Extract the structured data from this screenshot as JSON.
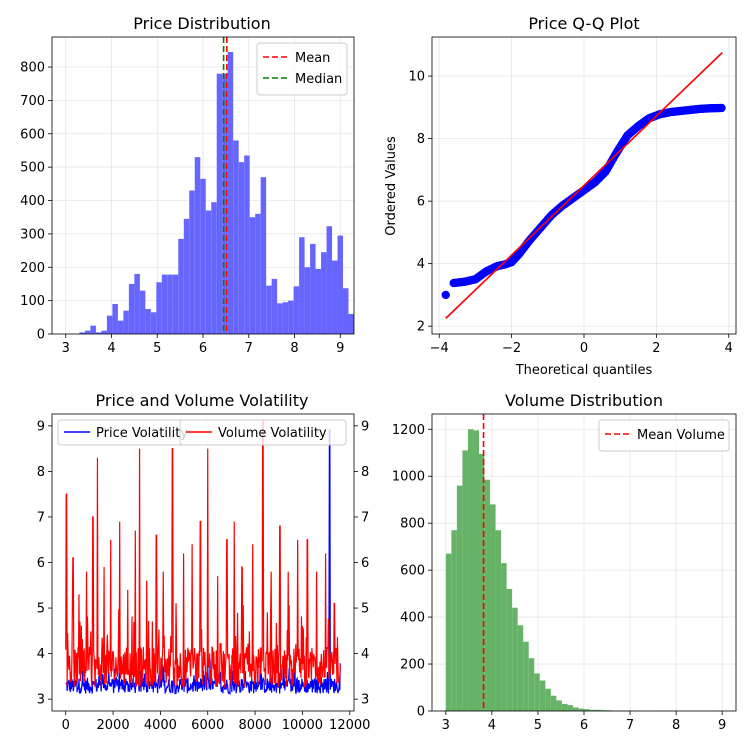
{
  "chart_data": [
    {
      "type": "bar",
      "title": "Price Distribution",
      "xlabel": "",
      "ylabel": "",
      "xlim": [
        2.7,
        9.3
      ],
      "ylim": [
        0,
        890
      ],
      "xticks": [
        "3",
        "4",
        "5",
        "6",
        "7",
        "8",
        "9"
      ],
      "yticks": [
        "0",
        "100",
        "200",
        "300",
        "400",
        "500",
        "600",
        "700",
        "800"
      ],
      "bin_start": 3.3,
      "bin_width": 0.12,
      "values": [
        5,
        10,
        25,
        5,
        10,
        55,
        90,
        40,
        70,
        150,
        180,
        130,
        75,
        65,
        155,
        178,
        178,
        178,
        285,
        345,
        430,
        530,
        465,
        370,
        395,
        780,
        780,
        845,
        580,
        515,
        535,
        350,
        360,
        470,
        145,
        165,
        92,
        95,
        100,
        143,
        290,
        200,
        270,
        195,
        245,
        323,
        220,
        295,
        137,
        60
      ],
      "bar_color": "#6666ff",
      "lines": [
        {
          "label": "Mean",
          "x": 6.52,
          "color": "#ff0000"
        },
        {
          "label": "Median",
          "x": 6.45,
          "color": "#008000"
        }
      ],
      "legend": "top-right",
      "grid": true
    },
    {
      "type": "scatter",
      "title": "Price Q-Q Plot",
      "xlabel": "Theoretical quantiles",
      "ylabel": "Ordered Values",
      "xlim": [
        -4.2,
        4.2
      ],
      "ylim": [
        1.75,
        11.25
      ],
      "xticks": [
        "−4",
        "−2",
        "0",
        "2",
        "4"
      ],
      "yticks": [
        "2",
        "4",
        "6",
        "8",
        "10"
      ],
      "curve": [
        [
          -3.82,
          3.0
        ],
        [
          -3.6,
          3.38
        ],
        [
          -3.3,
          3.42
        ],
        [
          -3.0,
          3.5
        ],
        [
          -2.7,
          3.75
        ],
        [
          -2.4,
          3.92
        ],
        [
          -2.2,
          3.97
        ],
        [
          -2.0,
          4.05
        ],
        [
          -1.8,
          4.3
        ],
        [
          -1.5,
          4.75
        ],
        [
          -1.2,
          5.15
        ],
        [
          -0.9,
          5.55
        ],
        [
          -0.6,
          5.85
        ],
        [
          -0.3,
          6.1
        ],
        [
          0.0,
          6.35
        ],
        [
          0.3,
          6.6
        ],
        [
          0.6,
          6.95
        ],
        [
          0.9,
          7.55
        ],
        [
          1.2,
          8.1
        ],
        [
          1.5,
          8.4
        ],
        [
          1.8,
          8.65
        ],
        [
          2.1,
          8.78
        ],
        [
          2.4,
          8.85
        ],
        [
          2.8,
          8.9
        ],
        [
          3.2,
          8.95
        ],
        [
          3.5,
          8.97
        ],
        [
          3.82,
          8.98
        ]
      ],
      "fit_line": [
        [
          -3.82,
          2.25
        ],
        [
          3.82,
          10.75
        ]
      ],
      "point_color": "#0000ff",
      "line_color": "#ff0000",
      "grid": true
    },
    {
      "type": "line",
      "title": "Price and Volume Volatility",
      "xlabel": "",
      "ylabel": "",
      "xlim": [
        -580,
        12180
      ],
      "ylim": [
        2.74,
        9.26
      ],
      "xticks": [
        "0",
        "2000",
        "4000",
        "6000",
        "8000",
        "10000",
        "12000"
      ],
      "yticks": [
        "3",
        "4",
        "5",
        "6",
        "7",
        "8",
        "9"
      ],
      "y2ticks": [
        "3",
        "4",
        "5",
        "6",
        "7",
        "8",
        "9"
      ],
      "n_points": 11600,
      "series": [
        {
          "name": "Price Volatility",
          "color": "#0000ff"
        },
        {
          "name": "Volume Volatility",
          "color": "#ff0000"
        }
      ],
      "price_spike": {
        "x": 11150,
        "y": 8.9
      },
      "volume_spikes": [
        [
          30,
          7.5
        ],
        [
          310,
          6.1
        ],
        [
          560,
          5.3
        ],
        [
          880,
          5.8
        ],
        [
          1150,
          7.0
        ],
        [
          1340,
          8.3
        ],
        [
          1620,
          5.9
        ],
        [
          1900,
          6.5
        ],
        [
          2280,
          6.9
        ],
        [
          2620,
          5.4
        ],
        [
          2940,
          6.7
        ],
        [
          3120,
          8.5
        ],
        [
          3420,
          5.6
        ],
        [
          3830,
          6.6
        ],
        [
          4120,
          5.8
        ],
        [
          4510,
          8.5
        ],
        [
          4980,
          6.2
        ],
        [
          5340,
          6.4
        ],
        [
          5690,
          6.9
        ],
        [
          6000,
          8.5
        ],
        [
          6420,
          5.7
        ],
        [
          6810,
          6.5
        ],
        [
          7120,
          6.9
        ],
        [
          7450,
          5.9
        ],
        [
          7900,
          6.4
        ],
        [
          8330,
          9.1
        ],
        [
          8680,
          5.8
        ],
        [
          9050,
          6.8
        ],
        [
          9400,
          5.8
        ],
        [
          9800,
          6.5
        ],
        [
          10210,
          6.5
        ],
        [
          10600,
          5.8
        ],
        [
          10980,
          6.2
        ],
        [
          11350,
          5.1
        ]
      ],
      "legend": "top",
      "grid": false
    },
    {
      "type": "bar",
      "title": "Volume Distribution",
      "xlabel": "",
      "ylabel": "",
      "xlim": [
        2.7,
        9.3
      ],
      "ylim": [
        0,
        1265
      ],
      "xticks": [
        "3",
        "4",
        "5",
        "6",
        "7",
        "8",
        "9"
      ],
      "yticks": [
        "0",
        "200",
        "400",
        "600",
        "800",
        "1000",
        "1200"
      ],
      "bin_start": 3.0,
      "bin_width": 0.12,
      "values": [
        670,
        770,
        960,
        1110,
        1200,
        1195,
        1095,
        985,
        880,
        770,
        630,
        520,
        440,
        365,
        295,
        225,
        160,
        130,
        95,
        65,
        45,
        30,
        25,
        15,
        10,
        8,
        5,
        5,
        4,
        3,
        2,
        2,
        1,
        1,
        1,
        0,
        0,
        0,
        0,
        1,
        0,
        0,
        0,
        0,
        0,
        0,
        0,
        0,
        0,
        1
      ],
      "bar_color": "#66b266",
      "lines": [
        {
          "label": "Mean Volume",
          "x": 3.82,
          "color": "#ff0000"
        }
      ],
      "legend": "top-right",
      "grid": true
    }
  ]
}
